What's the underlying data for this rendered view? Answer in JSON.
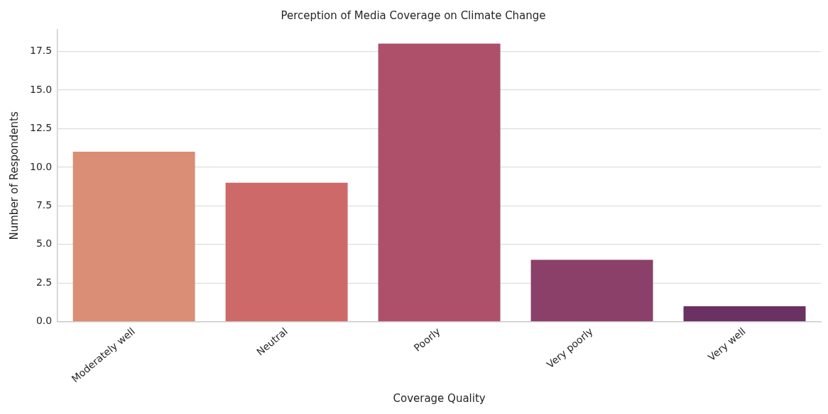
{
  "chart_data": {
    "type": "bar",
    "title": "Perception of Media Coverage on Climate Change",
    "xlabel": "Coverage Quality",
    "ylabel": "Number of Respondents",
    "categories": [
      "Moderately well",
      "Neutral",
      "Poorly",
      "Very poorly",
      "Very well"
    ],
    "values": [
      11,
      9,
      18,
      4,
      1
    ],
    "colors": [
      "#d98e75",
      "#cd6a69",
      "#ae506a",
      "#8a4069",
      "#6b3064"
    ],
    "ylim": [
      0,
      18.9
    ],
    "yticks": [
      {
        "value": 0,
        "label": "0.0"
      },
      {
        "value": 2.5,
        "label": "2.5"
      },
      {
        "value": 5,
        "label": "5.0"
      },
      {
        "value": 7.5,
        "label": "7.5"
      },
      {
        "value": 10,
        "label": "10.0"
      },
      {
        "value": 12.5,
        "label": "12.5"
      },
      {
        "value": 15,
        "label": "15.0"
      },
      {
        "value": 17.5,
        "label": "17.5"
      }
    ],
    "grid": "y"
  }
}
